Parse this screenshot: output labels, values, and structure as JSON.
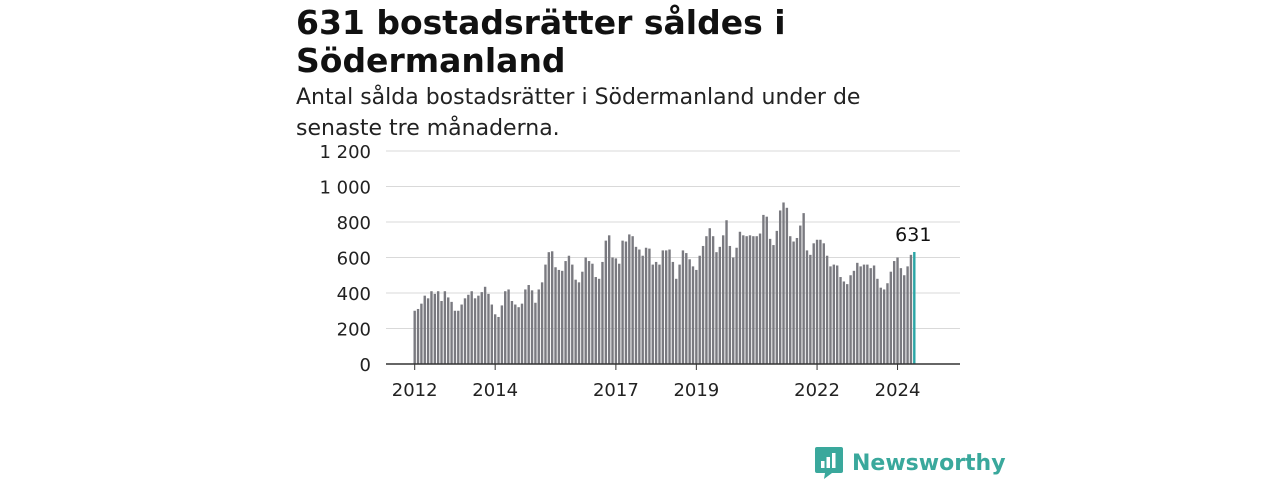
{
  "header": {
    "title": "631 bostadsrätter såldes i Södermanland",
    "subtitle": "Antal sålda bostadsrätter i Södermanland under de senaste tre månaderna."
  },
  "brand": {
    "name": "Newsworthy",
    "color": "#3aa89c",
    "icon": "newsworthy-logo-icon"
  },
  "colors": {
    "bar": "#7a7a80",
    "highlight": "#2ba6a6",
    "grid": "#d9d9d9",
    "axis": "#333333"
  },
  "chart_data": {
    "type": "bar",
    "title": "631 bostadsrätter såldes i Södermanland",
    "subtitle": "Antal sålda bostadsrätter i Södermanland under de senaste tre månaderna.",
    "xlabel": "",
    "ylabel": "",
    "ylim": [
      0,
      1200
    ],
    "yticks": [
      0,
      200,
      400,
      600,
      800,
      1000,
      1200
    ],
    "ytick_labels": [
      "0",
      "200",
      "400",
      "600",
      "800",
      "1 000",
      "1 200"
    ],
    "x_start": "2012-01",
    "x_end": "2024-12",
    "xtick_labels": [
      {
        "label": "2012",
        "date": "2012-01"
      },
      {
        "label": "2014",
        "date": "2014-01"
      },
      {
        "label": "2017",
        "date": "2017-01"
      },
      {
        "label": "2019",
        "date": "2019-01"
      },
      {
        "label": "2022",
        "date": "2022-01"
      },
      {
        "label": "2024",
        "date": "2024-01"
      }
    ],
    "grid": true,
    "highlight_last": true,
    "annotation": {
      "text": "631",
      "target": "last-bar"
    },
    "values": [
      300,
      310,
      340,
      385,
      370,
      410,
      395,
      410,
      355,
      410,
      375,
      350,
      300,
      300,
      335,
      370,
      390,
      410,
      370,
      385,
      405,
      435,
      395,
      335,
      280,
      265,
      330,
      410,
      420,
      355,
      335,
      320,
      340,
      420,
      445,
      415,
      345,
      420,
      460,
      560,
      630,
      635,
      545,
      530,
      525,
      580,
      610,
      560,
      475,
      460,
      520,
      600,
      580,
      565,
      490,
      480,
      575,
      695,
      725,
      600,
      595,
      565,
      695,
      690,
      730,
      720,
      660,
      645,
      610,
      655,
      650,
      560,
      575,
      560,
      640,
      640,
      645,
      575,
      480,
      560,
      640,
      625,
      590,
      550,
      530,
      610,
      665,
      720,
      765,
      720,
      630,
      660,
      725,
      810,
      665,
      600,
      655,
      745,
      725,
      720,
      725,
      720,
      720,
      735,
      840,
      830,
      705,
      670,
      750,
      865,
      910,
      880,
      720,
      690,
      710,
      780,
      850,
      640,
      615,
      680,
      700,
      700,
      680,
      610,
      550,
      560,
      555,
      490,
      465,
      450,
      500,
      525,
      570,
      550,
      560,
      560,
      540,
      555,
      480,
      430,
      420,
      455,
      520,
      580,
      600,
      540,
      500,
      550,
      615,
      631
    ]
  }
}
